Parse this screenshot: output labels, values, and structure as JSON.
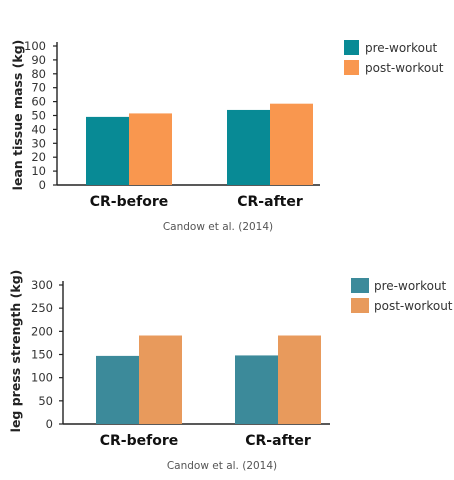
{
  "chart_data": [
    {
      "type": "bar",
      "categories": [
        "CR-before",
        "CR-after"
      ],
      "series": [
        {
          "name": "pre-workout",
          "values": [
            49,
            54
          ]
        },
        {
          "name": "post-workout",
          "values": [
            51.5,
            58.5
          ]
        }
      ],
      "ylabel": "lean tissue mass (kg)",
      "ylim": [
        0,
        100
      ],
      "yticks": [
        0,
        10,
        20,
        30,
        40,
        50,
        60,
        70,
        80,
        90,
        100
      ],
      "caption": "Candow et al. (2014)",
      "legend_position": "top-right",
      "grid": false,
      "colors": {
        "pre-workout": "#088a95",
        "post-workout": "#f9974f"
      }
    },
    {
      "type": "bar",
      "categories": [
        "CR-before",
        "CR-after"
      ],
      "series": [
        {
          "name": "pre-workout",
          "values": [
            147,
            148
          ]
        },
        {
          "name": "post-workout",
          "values": [
            191,
            191
          ]
        }
      ],
      "ylabel": "leg press strength (kg)",
      "ylim": [
        0,
        300
      ],
      "yticks": [
        0,
        50,
        100,
        150,
        200,
        250,
        300
      ],
      "caption": "Candow et al. (2014)",
      "legend_position": "top-right",
      "grid": false,
      "colors": {
        "pre-workout": "#3c8a9a",
        "post-workout": "#e89a5c"
      }
    }
  ]
}
